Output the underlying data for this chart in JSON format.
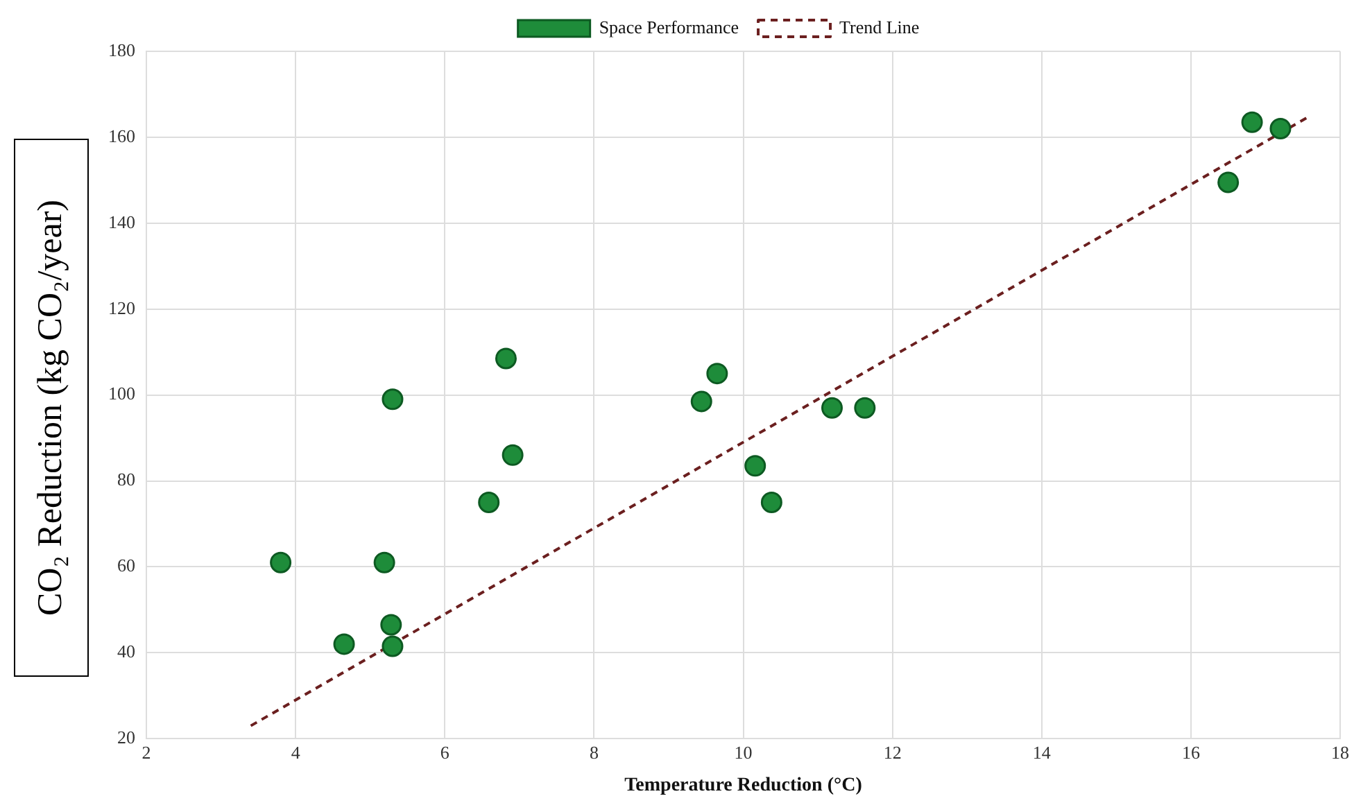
{
  "chart_data": {
    "type": "scatter",
    "xlabel": "Temperature Reduction (°C)",
    "ylabel": "CO₂ Reduction (kg CO₂/year)",
    "xlim": [
      2,
      18
    ],
    "xticks": [
      2,
      4,
      6,
      8,
      10,
      12,
      14,
      16,
      18
    ],
    "ylim": [
      20,
      180
    ],
    "yticks": [
      20,
      40,
      60,
      80,
      100,
      120,
      140,
      160,
      180
    ],
    "grid": true,
    "legend": "top",
    "series": [
      {
        "name": "Space Performance",
        "marker": "circle",
        "color": "#1e8c3a",
        "x": [
          3.8,
          4.65,
          5.19,
          5.3,
          5.28,
          5.3,
          6.59,
          6.82,
          6.91,
          9.44,
          9.65,
          10.16,
          10.38,
          11.19,
          11.63,
          16.5,
          16.82,
          17.2
        ],
        "values": [
          61,
          42,
          61,
          99,
          46.5,
          41.5,
          75,
          108.5,
          86,
          98.5,
          105,
          83.5,
          75,
          97,
          97,
          149.5,
          163.5,
          162
        ]
      },
      {
        "name": "Trend Line",
        "type": "line",
        "color": "#6b1f1f",
        "line_style": "dashed",
        "marker": "none",
        "x": [
          3.4,
          17.6
        ],
        "values": [
          23,
          165
        ]
      }
    ]
  }
}
